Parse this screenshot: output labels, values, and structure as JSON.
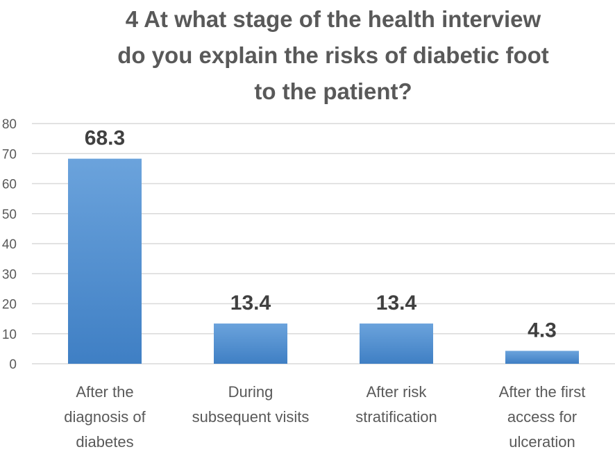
{
  "chart_data": {
    "type": "bar",
    "title_lines": [
      "4 At what stage of the health interview",
      "do you explain the risks of diabetic foot",
      "to the patient?"
    ],
    "categories": [
      [
        "After the",
        "diagnosis of",
        "diabetes"
      ],
      [
        "During",
        "subsequent visits"
      ],
      [
        "After risk",
        "stratification"
      ],
      [
        "After the first",
        "access for",
        "ulceration"
      ]
    ],
    "values": [
      68.3,
      13.4,
      13.4,
      4.3
    ],
    "data_labels": [
      "68.3",
      "13.4",
      "13.4",
      "4.3"
    ],
    "ylim": [
      0,
      80
    ],
    "yticks": [
      0,
      10,
      20,
      30,
      40,
      50,
      60,
      70,
      80
    ],
    "grid": true,
    "legend": "none",
    "colors": {
      "bar_top": "#6ba3dc",
      "bar_bottom": "#3f7fc4",
      "grid": "#d9d9d9",
      "axis_text": "#595959",
      "label_text": "#404040"
    }
  }
}
